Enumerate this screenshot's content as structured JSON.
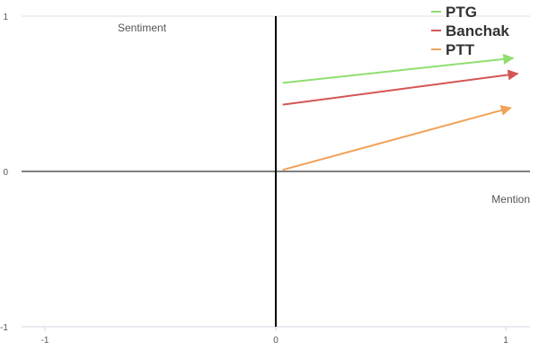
{
  "chart_data": {
    "type": "line",
    "xlabel": "Mention",
    "ylabel": "Sentiment",
    "xlim": [
      -1,
      1
    ],
    "ylim": [
      -1,
      1
    ],
    "x_ticks": [
      "-1",
      "0",
      "1"
    ],
    "y_ticks": [
      "1",
      "0",
      "-1"
    ],
    "grid": false,
    "legend_position": "top-right",
    "series": [
      {
        "name": "PTG",
        "color": "#8fde6f",
        "x": [
          0.03,
          1.03
        ],
        "y": [
          0.57,
          0.73
        ]
      },
      {
        "name": "Banchak",
        "color": "#d45555",
        "x": [
          0.03,
          1.05
        ],
        "y": [
          0.43,
          0.63
        ]
      },
      {
        "name": "PTT",
        "color": "#f0a35a",
        "x": [
          0.03,
          1.02
        ],
        "y": [
          0.01,
          0.41
        ]
      }
    ]
  }
}
